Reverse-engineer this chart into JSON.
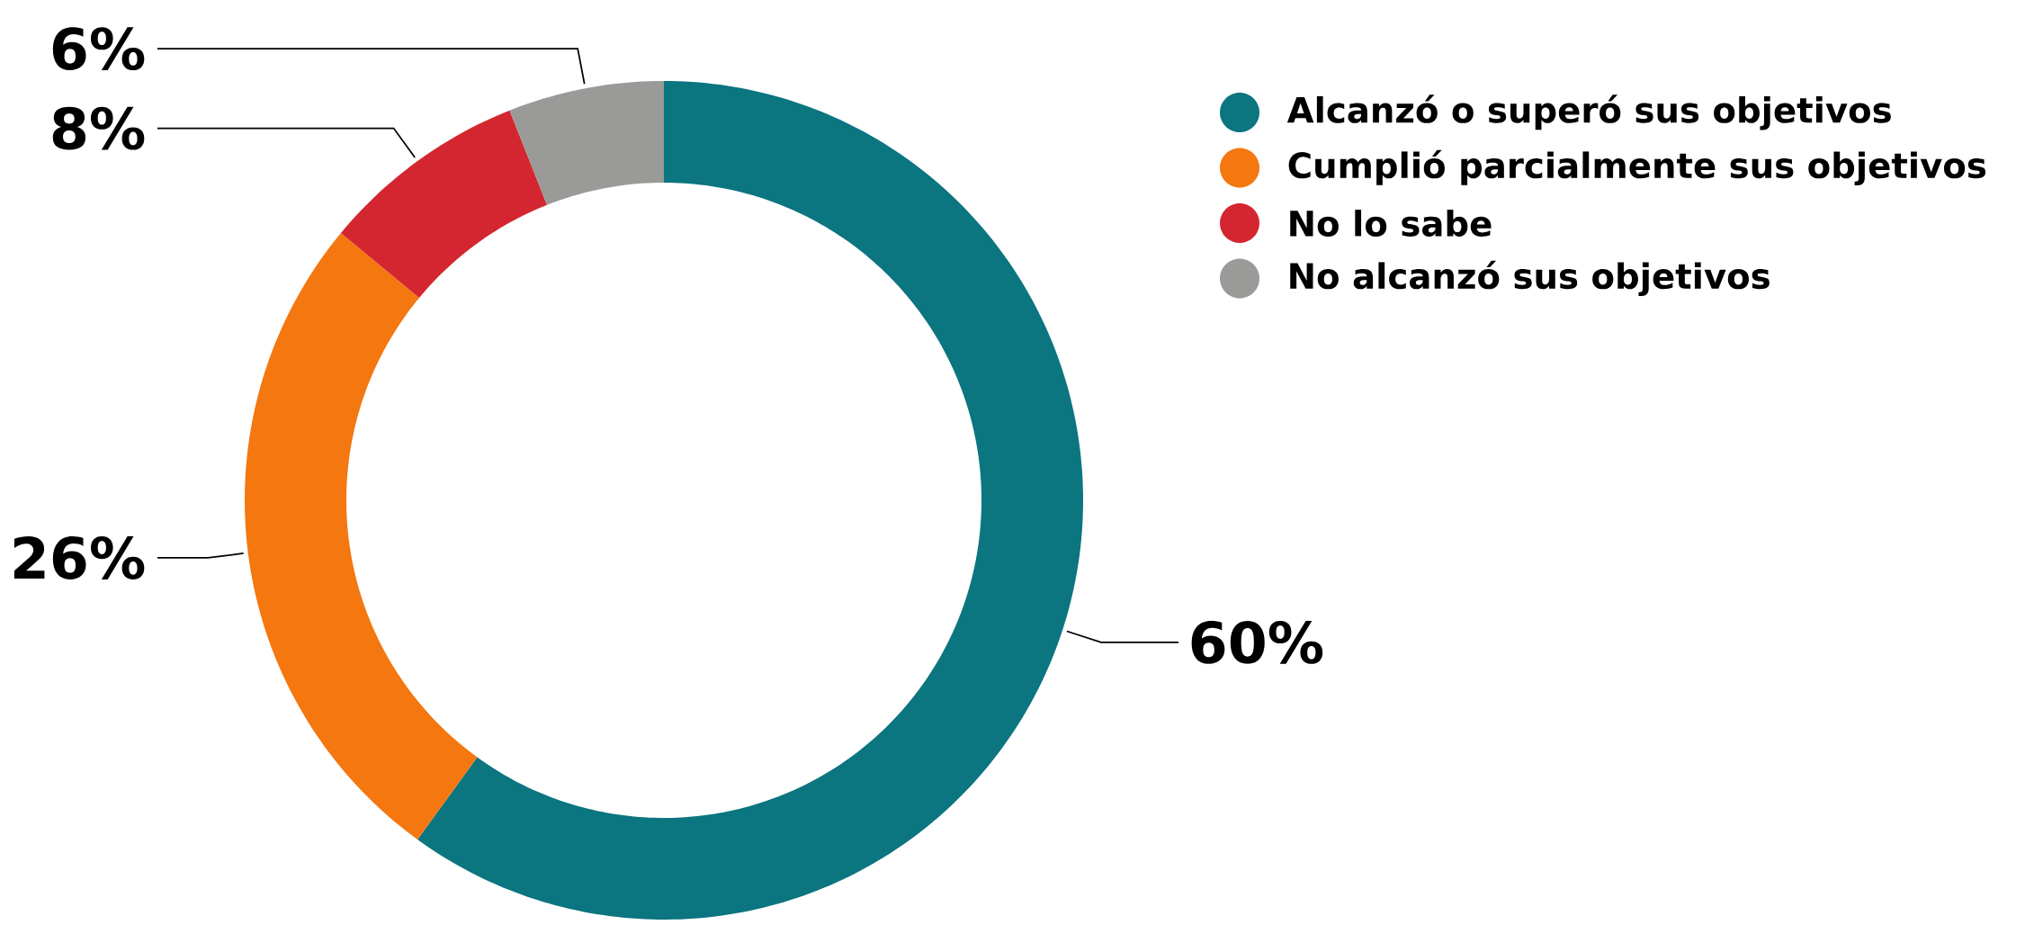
{
  "chart_data": {
    "type": "donut",
    "categories": [
      "Alcanzó o superó sus objetivos",
      "Cumplió parcialmente sus objetivos",
      "No lo sabe",
      "No alcanzó sus objetivos"
    ],
    "values": [
      60,
      26,
      8,
      6
    ],
    "colors": [
      "#0b7580",
      "#f47710",
      "#d42630",
      "#9a9a98"
    ],
    "value_labels": [
      "60%",
      "26%",
      "8%",
      "6%"
    ],
    "legend": "top right"
  }
}
